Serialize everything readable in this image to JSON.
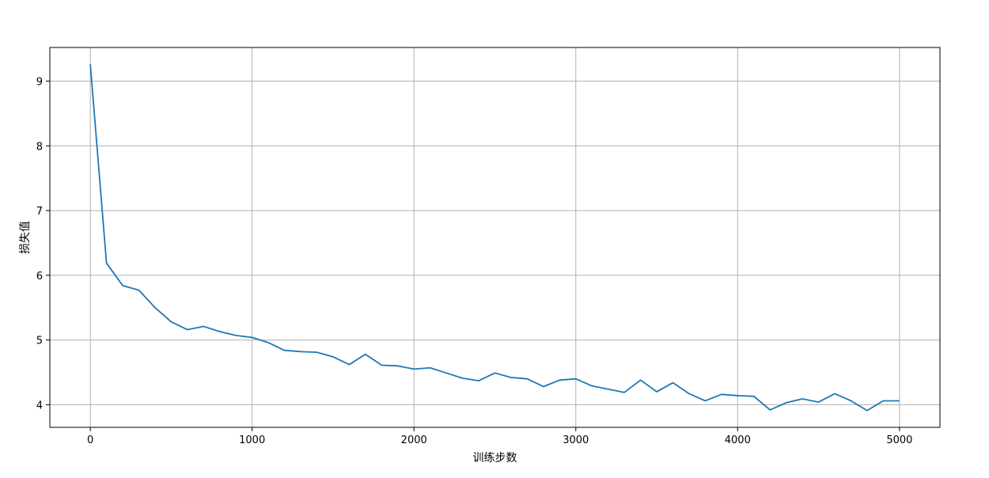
{
  "chart_data": {
    "type": "line",
    "title": "",
    "xlabel": "训练步数",
    "ylabel": "损失值",
    "xlim": [
      -250,
      5250
    ],
    "ylim": [
      3.65,
      9.52
    ],
    "grid": true,
    "legend": "none",
    "x_ticks": [
      0,
      1000,
      2000,
      3000,
      4000,
      5000
    ],
    "y_ticks": [
      4,
      5,
      6,
      7,
      8,
      9
    ],
    "series": [
      {
        "color": "#1f77b4",
        "x": [
          0,
          100,
          200,
          300,
          400,
          500,
          600,
          700,
          800,
          900,
          1000,
          1100,
          1200,
          1300,
          1400,
          1500,
          1600,
          1700,
          1800,
          1900,
          2000,
          2100,
          2200,
          2300,
          2400,
          2500,
          2600,
          2700,
          2800,
          2900,
          3000,
          3100,
          3200,
          3300,
          3400,
          3500,
          3600,
          3700,
          3800,
          3900,
          4000,
          4100,
          4200,
          4300,
          4400,
          4500,
          4600,
          4700,
          4800,
          4900,
          5000
        ],
        "y": [
          9.26,
          6.19,
          5.84,
          5.77,
          5.5,
          5.28,
          5.16,
          5.21,
          5.13,
          5.07,
          5.04,
          4.96,
          4.84,
          4.82,
          4.81,
          4.74,
          4.62,
          4.78,
          4.61,
          4.6,
          4.55,
          4.57,
          4.49,
          4.41,
          4.37,
          4.49,
          4.42,
          4.4,
          4.28,
          4.38,
          4.4,
          4.29,
          4.24,
          4.19,
          4.38,
          4.2,
          4.34,
          4.17,
          4.06,
          4.16,
          4.14,
          4.13,
          3.92,
          4.03,
          4.09,
          4.04,
          4.17,
          4.06,
          3.91,
          4.06,
          4.06
        ]
      }
    ]
  }
}
